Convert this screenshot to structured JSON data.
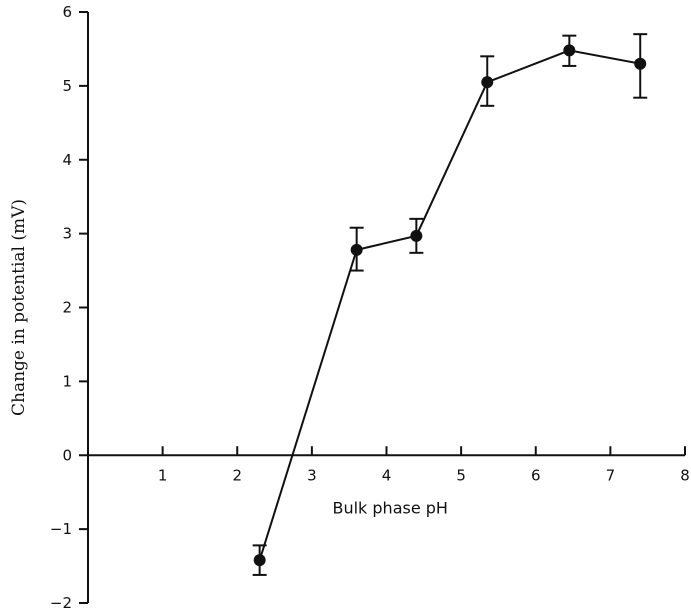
{
  "chart_data": {
    "type": "line",
    "title": "",
    "xlabel": "Bulk phase pH",
    "ylabel": "Change in potential (mV)",
    "xlim": [
      0,
      8
    ],
    "ylim": [
      -2,
      6
    ],
    "xticks": [
      1,
      2,
      3,
      4,
      5,
      6,
      7,
      8
    ],
    "yticks": [
      -2,
      -1,
      0,
      1,
      2,
      3,
      4,
      5,
      6
    ],
    "grid": false,
    "legend": "none",
    "color": "#111111",
    "series": [
      {
        "x": [
          2.3,
          3.6,
          4.4,
          5.35,
          6.45,
          7.4
        ],
        "y": [
          -1.42,
          2.78,
          2.97,
          5.05,
          5.48,
          5.3
        ],
        "error_low": [
          -1.62,
          2.5,
          2.74,
          4.73,
          5.27,
          4.84
        ],
        "error_high": [
          -1.22,
          3.08,
          3.2,
          5.4,
          5.68,
          5.7
        ]
      }
    ]
  }
}
